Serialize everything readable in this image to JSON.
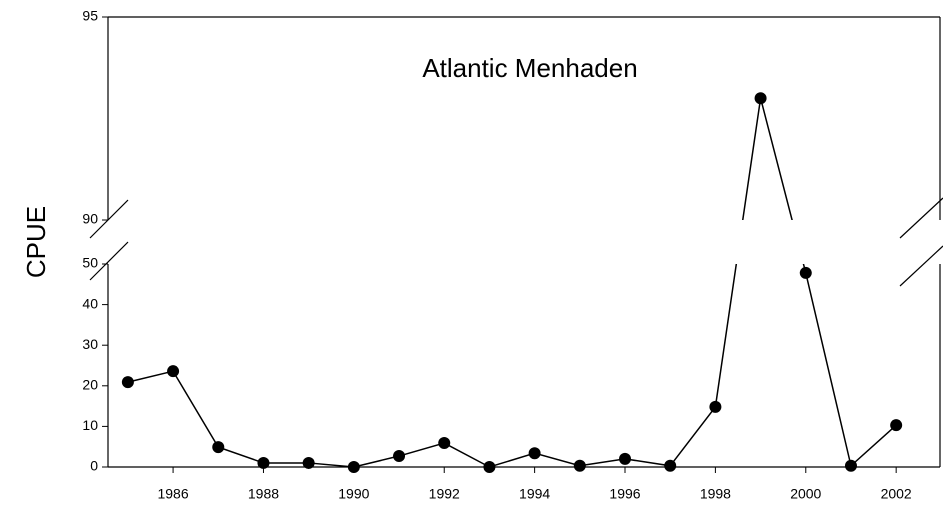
{
  "chart_data": {
    "type": "line",
    "title": "Atlantic Menhaden",
    "y_label": "CPUE",
    "x": [
      1985,
      1986,
      1987,
      1988,
      1989,
      1990,
      1991,
      1992,
      1993,
      1994,
      1995,
      1996,
      1997,
      1998,
      1999,
      2000,
      2001,
      2002
    ],
    "values": [
      20.9,
      23.6,
      4.9,
      1,
      1,
      0,
      2.7,
      5.9,
      0,
      3.4,
      0.3,
      2,
      0.3,
      14.8,
      93,
      47.8,
      0.3,
      10.3
    ],
    "color": "#000000",
    "xlim": [
      1984.56,
      2002.97
    ],
    "xticks": [
      1986,
      1988,
      1990,
      1992,
      1994,
      1996,
      1998,
      2000,
      2002
    ],
    "ylim_segments": [
      [
        0,
        50
      ],
      [
        90,
        95
      ]
    ],
    "yticks": [
      0,
      10,
      20,
      30,
      40,
      50,
      90,
      95
    ],
    "grid": false
  }
}
